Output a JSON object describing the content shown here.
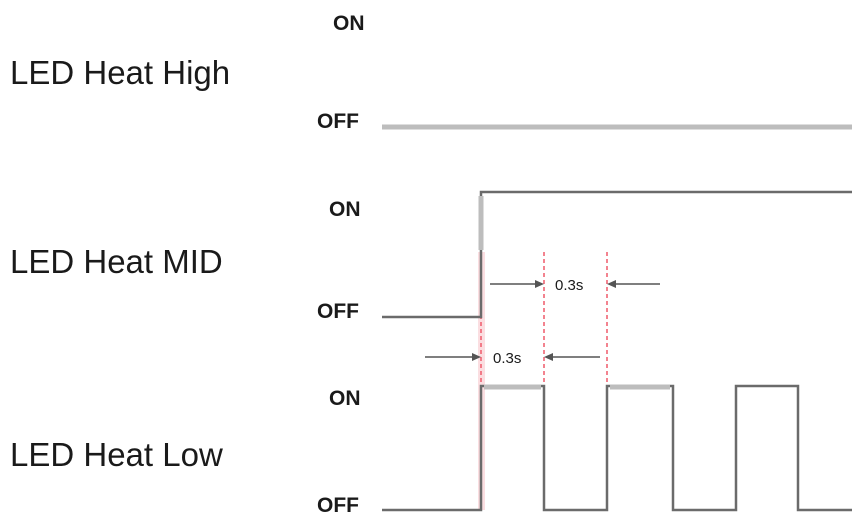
{
  "rows": [
    {
      "label": "LED Heat High",
      "on_label": "ON",
      "off_label": "OFF"
    },
    {
      "label": "LED Heat MID",
      "on_label": "ON",
      "off_label": "OFF"
    },
    {
      "label": "LED Heat Low",
      "on_label": "ON",
      "off_label": "OFF"
    }
  ],
  "intervals": {
    "upper": "0.3s",
    "lower": "0.3s"
  },
  "colors": {
    "waveform": "#6b6b6b",
    "waveform_light": "#bdbdbd",
    "guide": "#ef5a6a"
  }
}
